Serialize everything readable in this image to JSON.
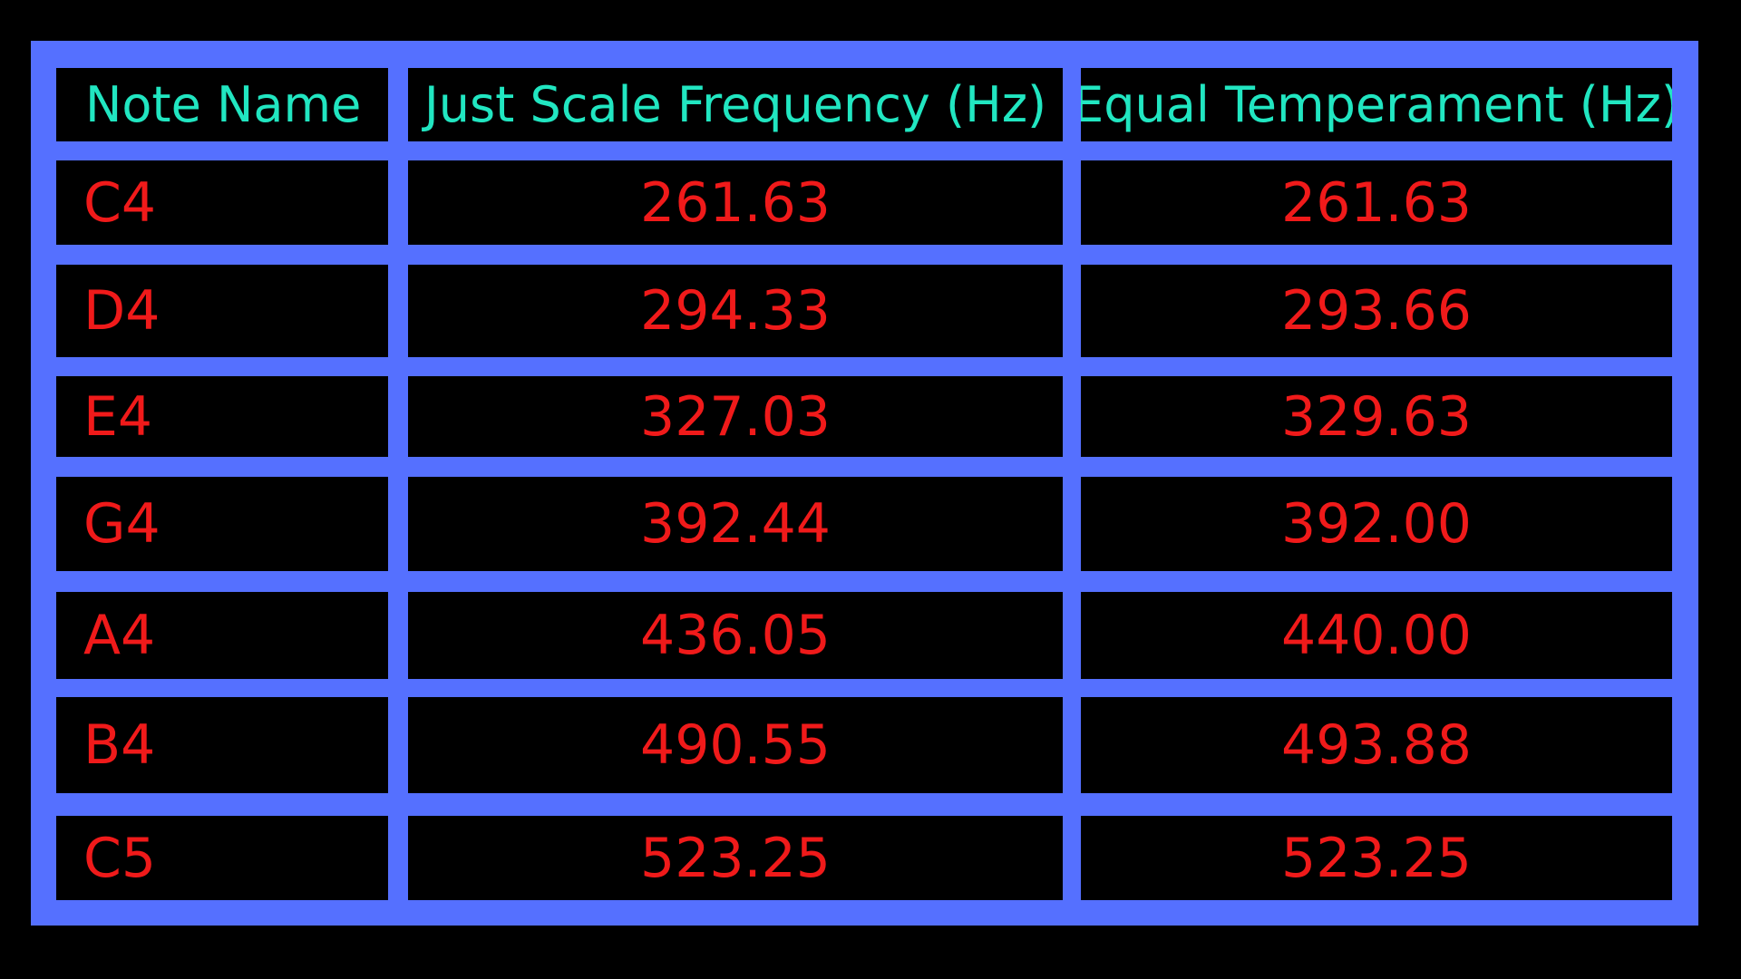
{
  "colors": {
    "frame": "#5570FF",
    "cell_background": "#000000",
    "header_text": "#21E6C1",
    "value_text": "#F01A1A"
  },
  "chart_data": {
    "type": "table",
    "columns": [
      "Note Name",
      "Just Scale Frequency (Hz)",
      "Equal Temperament (Hz)"
    ],
    "rows": [
      [
        "C4",
        "261.63",
        "261.63"
      ],
      [
        "D4",
        "294.33",
        "293.66"
      ],
      [
        "E4",
        "327.03",
        "329.63"
      ],
      [
        "G4",
        "392.44",
        "392.00"
      ],
      [
        "A4",
        "436.05",
        "440.00"
      ],
      [
        "B4",
        "490.55",
        "493.88"
      ],
      [
        "C5",
        "523.25",
        "523.25"
      ]
    ]
  }
}
